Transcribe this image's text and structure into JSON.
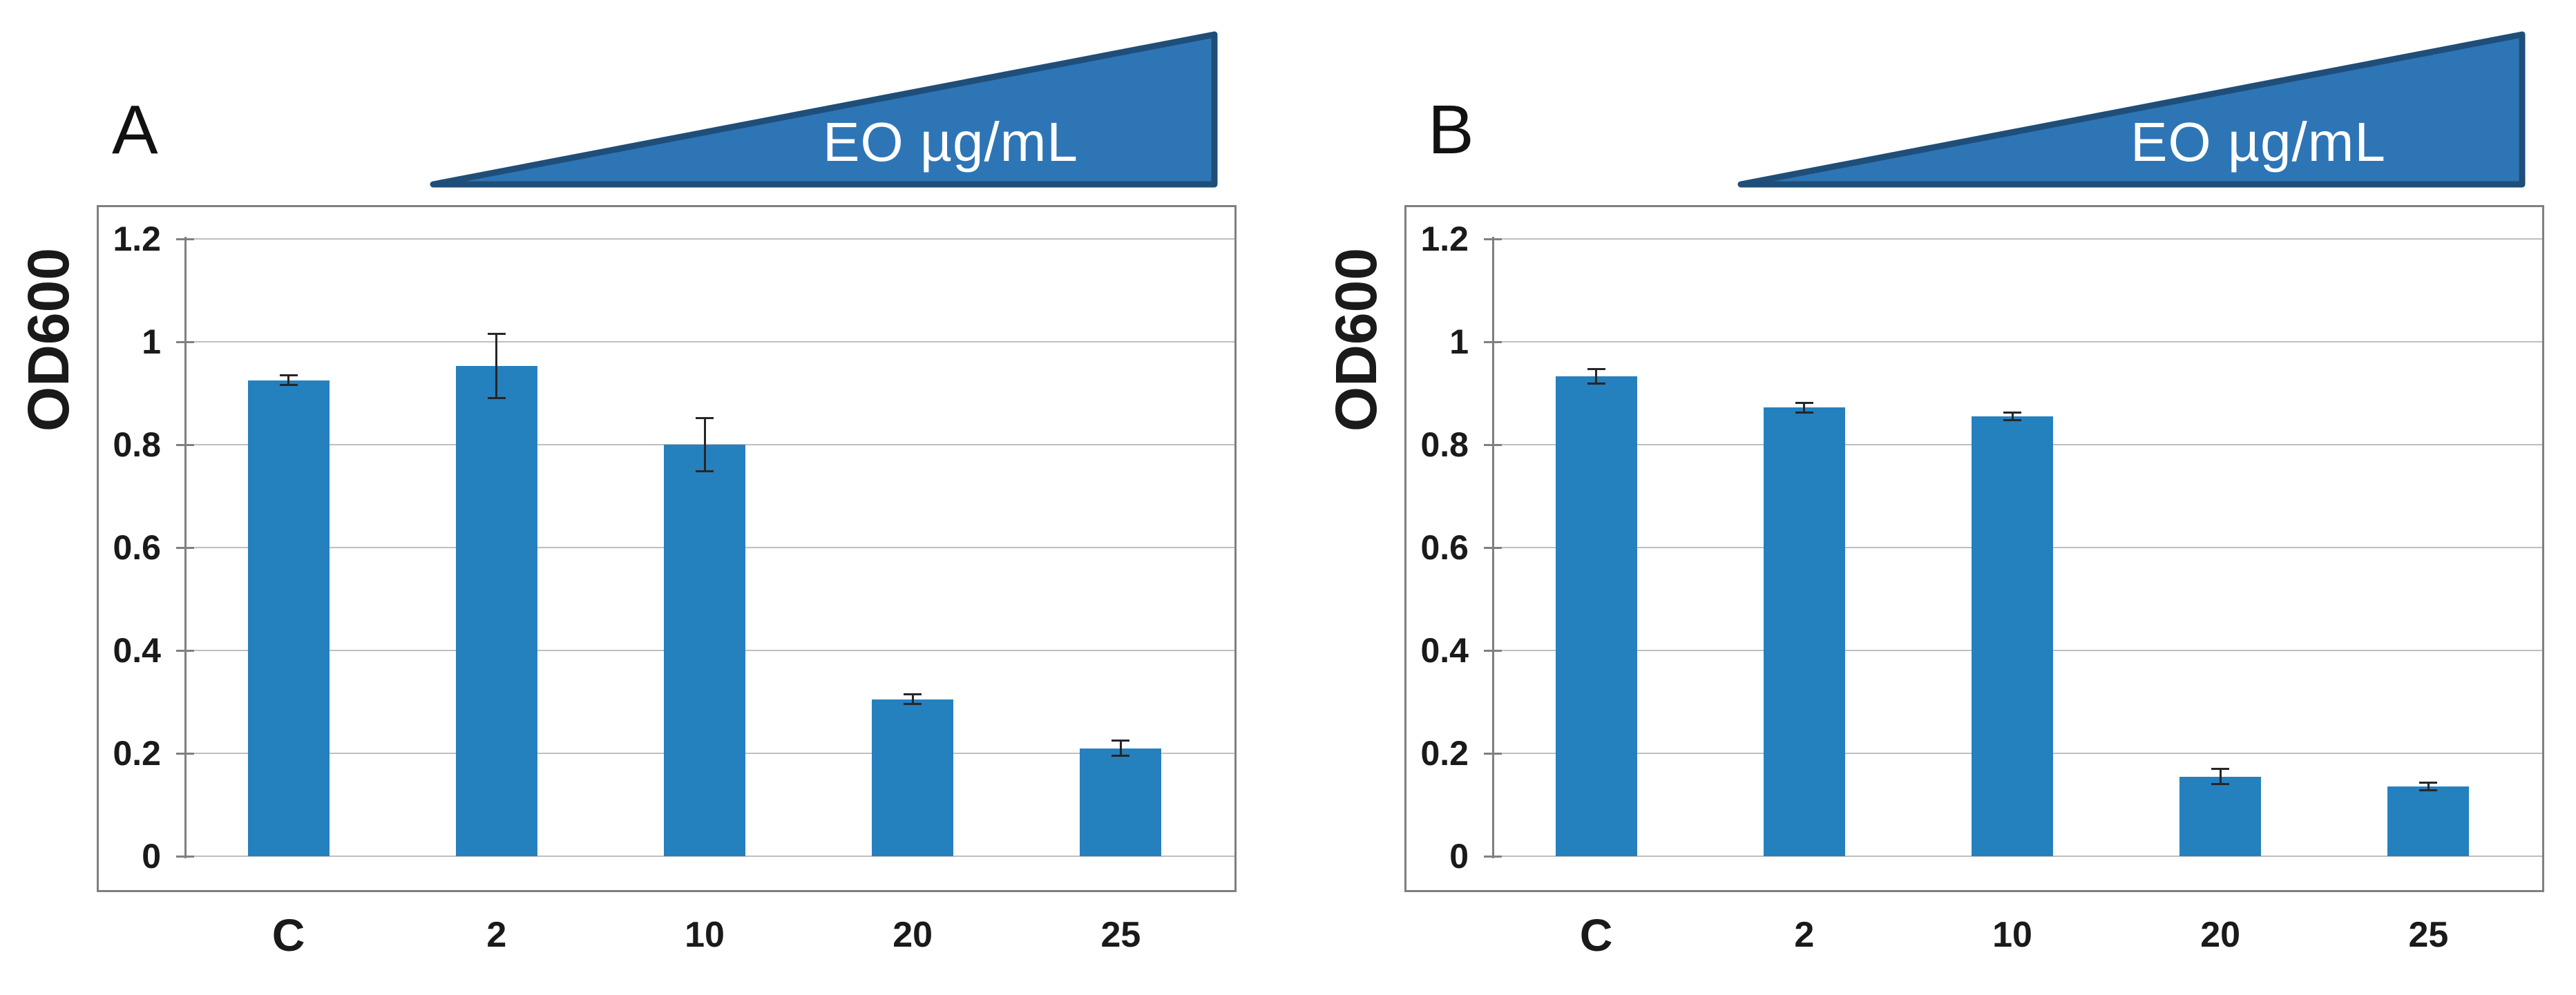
{
  "page": {
    "background": "#FFFFFF"
  },
  "colors": {
    "bar": "#2580BE",
    "triangle_fill": "#2E75B6",
    "triangle_border": "#1F4E79",
    "annotation_text": "#FFFFFF",
    "gridline": "#BFBFBF",
    "zero_line": "#A6A6A6",
    "axis_line": "#808080",
    "box_border": "#7F7F7F",
    "error_bar": "#262626",
    "text": "#1A1A1A"
  },
  "chart_data": [
    {
      "type": "bar",
      "panel_label": "A",
      "title": "",
      "categories": [
        "C",
        "2",
        "10",
        "20",
        "25"
      ],
      "values": [
        0.925,
        0.953,
        0.8,
        0.305,
        0.21
      ],
      "errors": [
        0.01,
        0.063,
        0.053,
        0.01,
        0.016
      ],
      "xlabel": "",
      "ylabel": "OD600",
      "annotation": "EO µg/mL",
      "ylim": [
        0,
        1.2
      ],
      "ytick_step": 0.2,
      "ytick_labels": [
        "1.2",
        "1",
        "0.8",
        "0.6",
        "0.4",
        "0.2",
        "0"
      ],
      "grid": true,
      "legend": false
    },
    {
      "type": "bar",
      "panel_label": "B",
      "title": "",
      "categories": [
        "C",
        "2",
        "10",
        "20",
        "25"
      ],
      "values": [
        0.933,
        0.872,
        0.855,
        0.155,
        0.136
      ],
      "errors": [
        0.015,
        0.01,
        0.008,
        0.016,
        0.008
      ],
      "xlabel": "",
      "ylabel": "OD600",
      "annotation": "EO µg/mL",
      "ylim": [
        0,
        1.2
      ],
      "ytick_step": 0.2,
      "ytick_labels": [
        "1.2",
        "1",
        "0.8",
        "0.6",
        "0.4",
        "0.2",
        "0"
      ],
      "grid": true,
      "legend": false
    }
  ]
}
